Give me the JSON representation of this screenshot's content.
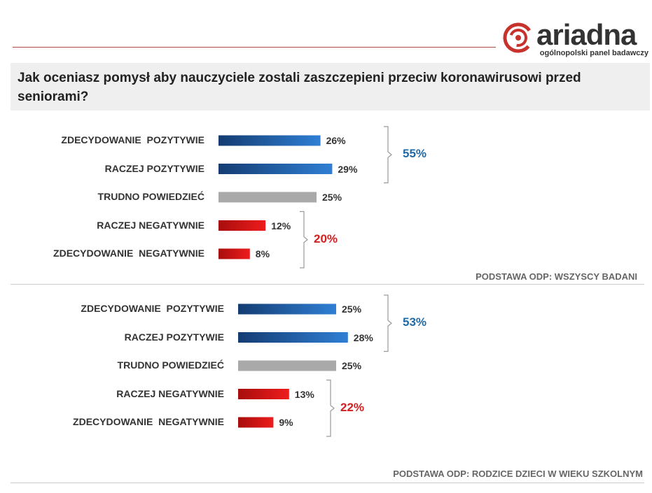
{
  "brand": {
    "name": "ariadna",
    "tagline": "ogólnopolski panel badawczy"
  },
  "question": "Jak oceniasz pomysł aby nauczyciele zostali zaszczepieni przeciw koronawirusowi przed seniorami?",
  "colors": {
    "positive_dark": "#143c72",
    "positive_light": "#2f7fd4",
    "neutral": "#a9a9a9",
    "negative_dark": "#a80d0d",
    "negative_light": "#ee1c1c",
    "positive_text": "#1f6aa6",
    "negative_text": "#d31f1f"
  },
  "chart_data": [
    {
      "type": "bar",
      "orientation": "horizontal",
      "categories": [
        "ZDECYDOWANIE  POZYTYWIE",
        "RACZEJ POZYTYWIE",
        "TRUDNO POWIEDZIEĆ",
        "RACZEJ NEGATYWNIE",
        "ZDECYDOWANIE  NEGATYWNIE"
      ],
      "values": [
        26,
        29,
        25,
        12,
        8
      ],
      "labels": [
        "26%",
        "29%",
        "25%",
        "12%",
        "8%"
      ],
      "groups": [
        {
          "label": "55%",
          "value": 55,
          "from": 0,
          "to": 1,
          "sentiment": "positive"
        },
        {
          "label": "20%",
          "value": 20,
          "from": 3,
          "to": 4,
          "sentiment": "negative"
        }
      ],
      "basis": "PODSTAWA ODP: WSZYSCY BADANI",
      "unit": "%"
    },
    {
      "type": "bar",
      "orientation": "horizontal",
      "categories": [
        "ZDECYDOWANIE  POZYTYWIE",
        "RACZEJ POZYTYWIE",
        "TRUDNO POWIEDZIEĆ",
        "RACZEJ NEGATYWNIE",
        "ZDECYDOWANIE  NEGATYWNIE"
      ],
      "values": [
        25,
        28,
        25,
        13,
        9
      ],
      "labels": [
        "25%",
        "28%",
        "25%",
        "13%",
        "9%"
      ],
      "groups": [
        {
          "label": "53%",
          "value": 53,
          "from": 0,
          "to": 1,
          "sentiment": "positive"
        },
        {
          "label": "22%",
          "value": 22,
          "from": 3,
          "to": 4,
          "sentiment": "negative"
        }
      ],
      "basis": "PODSTAWA ODP: RODZICE DZIECI W WIEKU SZKOLNYM",
      "unit": "%"
    }
  ]
}
